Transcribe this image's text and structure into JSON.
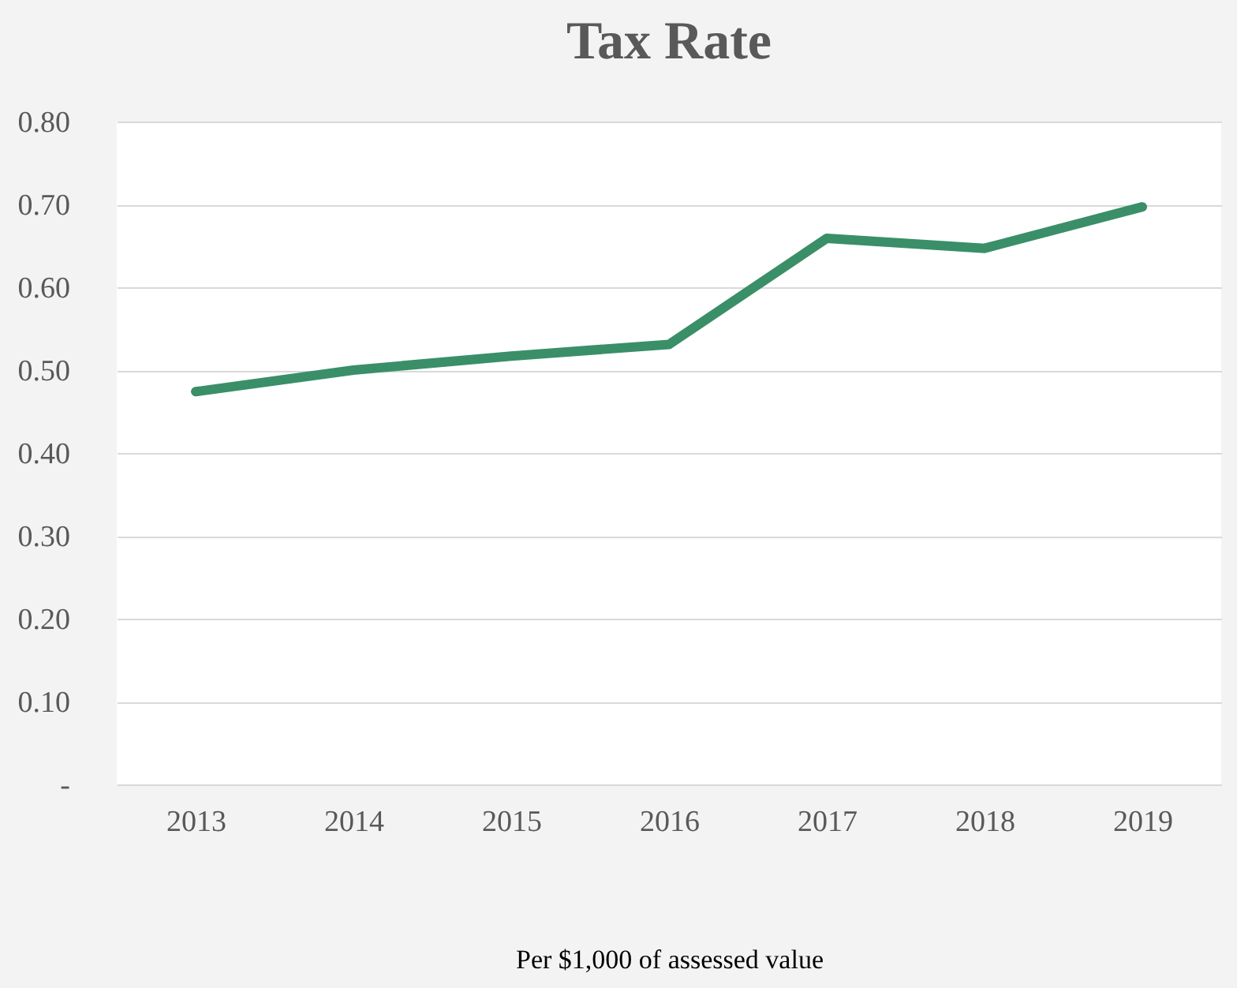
{
  "chart_data": {
    "type": "line",
    "title": "Tax Rate",
    "xlabel": "Per $1,000 of assessed value",
    "categories": [
      "2013",
      "2014",
      "2015",
      "2016",
      "2017",
      "2018",
      "2019"
    ],
    "series": [
      {
        "color": "#3a8f68",
        "values": [
          0.474,
          0.5,
          0.517,
          0.531,
          0.659,
          0.647,
          0.697
        ]
      }
    ],
    "ylim": [
      0,
      0.8
    ],
    "yticks": [
      {
        "value": 0,
        "label": "-"
      },
      {
        "value": 0.1,
        "label": "0.10"
      },
      {
        "value": 0.2,
        "label": "0.20"
      },
      {
        "value": 0.3,
        "label": "0.30"
      },
      {
        "value": 0.4,
        "label": "0.40"
      },
      {
        "value": 0.5,
        "label": "0.50"
      },
      {
        "value": 0.6,
        "label": "0.60"
      },
      {
        "value": 0.7,
        "label": "0.70"
      },
      {
        "value": 0.8,
        "label": "0.80"
      }
    ],
    "grid": "y",
    "marker": "none",
    "line_style": "solid"
  }
}
